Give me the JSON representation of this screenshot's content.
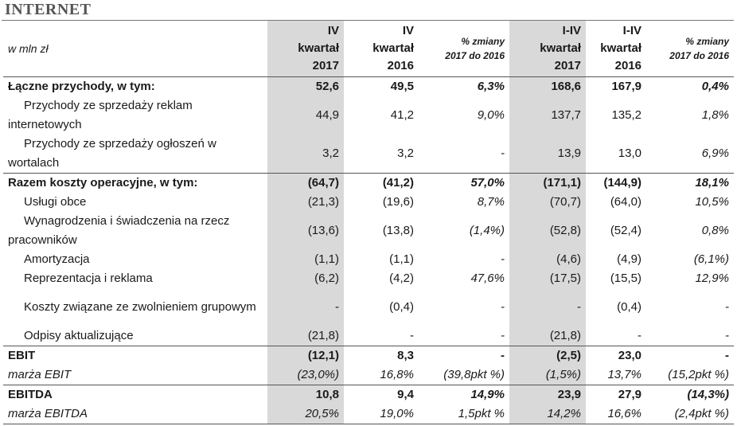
{
  "section_title": "INTERNET",
  "header": {
    "unit_label": "w mln zł",
    "col1": [
      "IV",
      "kwartał",
      "2017"
    ],
    "col2": [
      "IV",
      "kwartał",
      "2016"
    ],
    "col3": [
      "% zmiany",
      "2017 do 2016"
    ],
    "col4": [
      "I-IV",
      "kwartał",
      "2017"
    ],
    "col5": [
      "I-IV",
      "kwartał",
      "2016"
    ],
    "col6": [
      "% zmiany",
      "2017 do 2016"
    ]
  },
  "rows": [
    {
      "label": "Łączne przychody, w tym:",
      "values": [
        "52,6",
        "49,5",
        "6,3%",
        "168,6",
        "167,9",
        "0,4%"
      ]
    },
    {
      "label": "Przychody ze sprzedaży reklam internetowych",
      "values": [
        "44,9",
        "41,2",
        "9,0%",
        "137,7",
        "135,2",
        "1,8%"
      ]
    },
    {
      "label": "Przychody ze sprzedaży ogłoszeń w wortalach",
      "values": [
        "3,2",
        "3,2",
        "-",
        "13,9",
        "13,0",
        "6,9%"
      ]
    },
    {
      "label": "Razem koszty operacyjne, w tym:",
      "values": [
        "(64,7)",
        "(41,2)",
        "57,0%",
        "(171,1)",
        "(144,9)",
        "18,1%"
      ]
    },
    {
      "label": "Usługi obce",
      "values": [
        "(21,3)",
        "(19,6)",
        "8,7%",
        "(70,7)",
        "(64,0)",
        "10,5%"
      ]
    },
    {
      "label": "Wynagrodzenia i świadczenia na rzecz pracowników",
      "values": [
        "(13,6)",
        "(13,8)",
        "(1,4%)",
        "(52,8)",
        "(52,4)",
        "0,8%"
      ]
    },
    {
      "label": "Amortyzacja",
      "values": [
        "(1,1)",
        "(1,1)",
        "-",
        "(4,6)",
        "(4,9)",
        "(6,1%)"
      ]
    },
    {
      "label": "Reprezentacja i reklama",
      "values": [
        "(6,2)",
        "(4,2)",
        "47,6%",
        "(17,5)",
        "(15,5)",
        "12,9%"
      ]
    },
    {
      "label": "Koszty związane ze zwolnieniem grupowym",
      "values": [
        "-",
        "(0,4)",
        "-",
        "-",
        "(0,4)",
        "-"
      ]
    },
    {
      "label": "Odpisy aktualizujące",
      "values": [
        "(21,8)",
        "-",
        "-",
        "(21,8)",
        "-",
        "-"
      ]
    },
    {
      "label": "EBIT",
      "values": [
        "(12,1)",
        "8,3",
        "-",
        "(2,5)",
        "23,0",
        "-"
      ]
    },
    {
      "label": "marża EBIT",
      "values": [
        "(23,0%)",
        "16,8%",
        "(39,8pkt %)",
        "(1,5%)",
        "13,7%",
        "(15,2pkt %)"
      ]
    },
    {
      "label": "EBITDA",
      "values": [
        "10,8",
        "9,4",
        "14,9%",
        "23,9",
        "27,9",
        "(14,3%)"
      ]
    },
    {
      "label": "marża EBITDA",
      "values": [
        "20,5%",
        "19,0%",
        "1,5pkt %",
        "14,2%",
        "16,6%",
        "(2,4pkt %)"
      ]
    }
  ]
}
